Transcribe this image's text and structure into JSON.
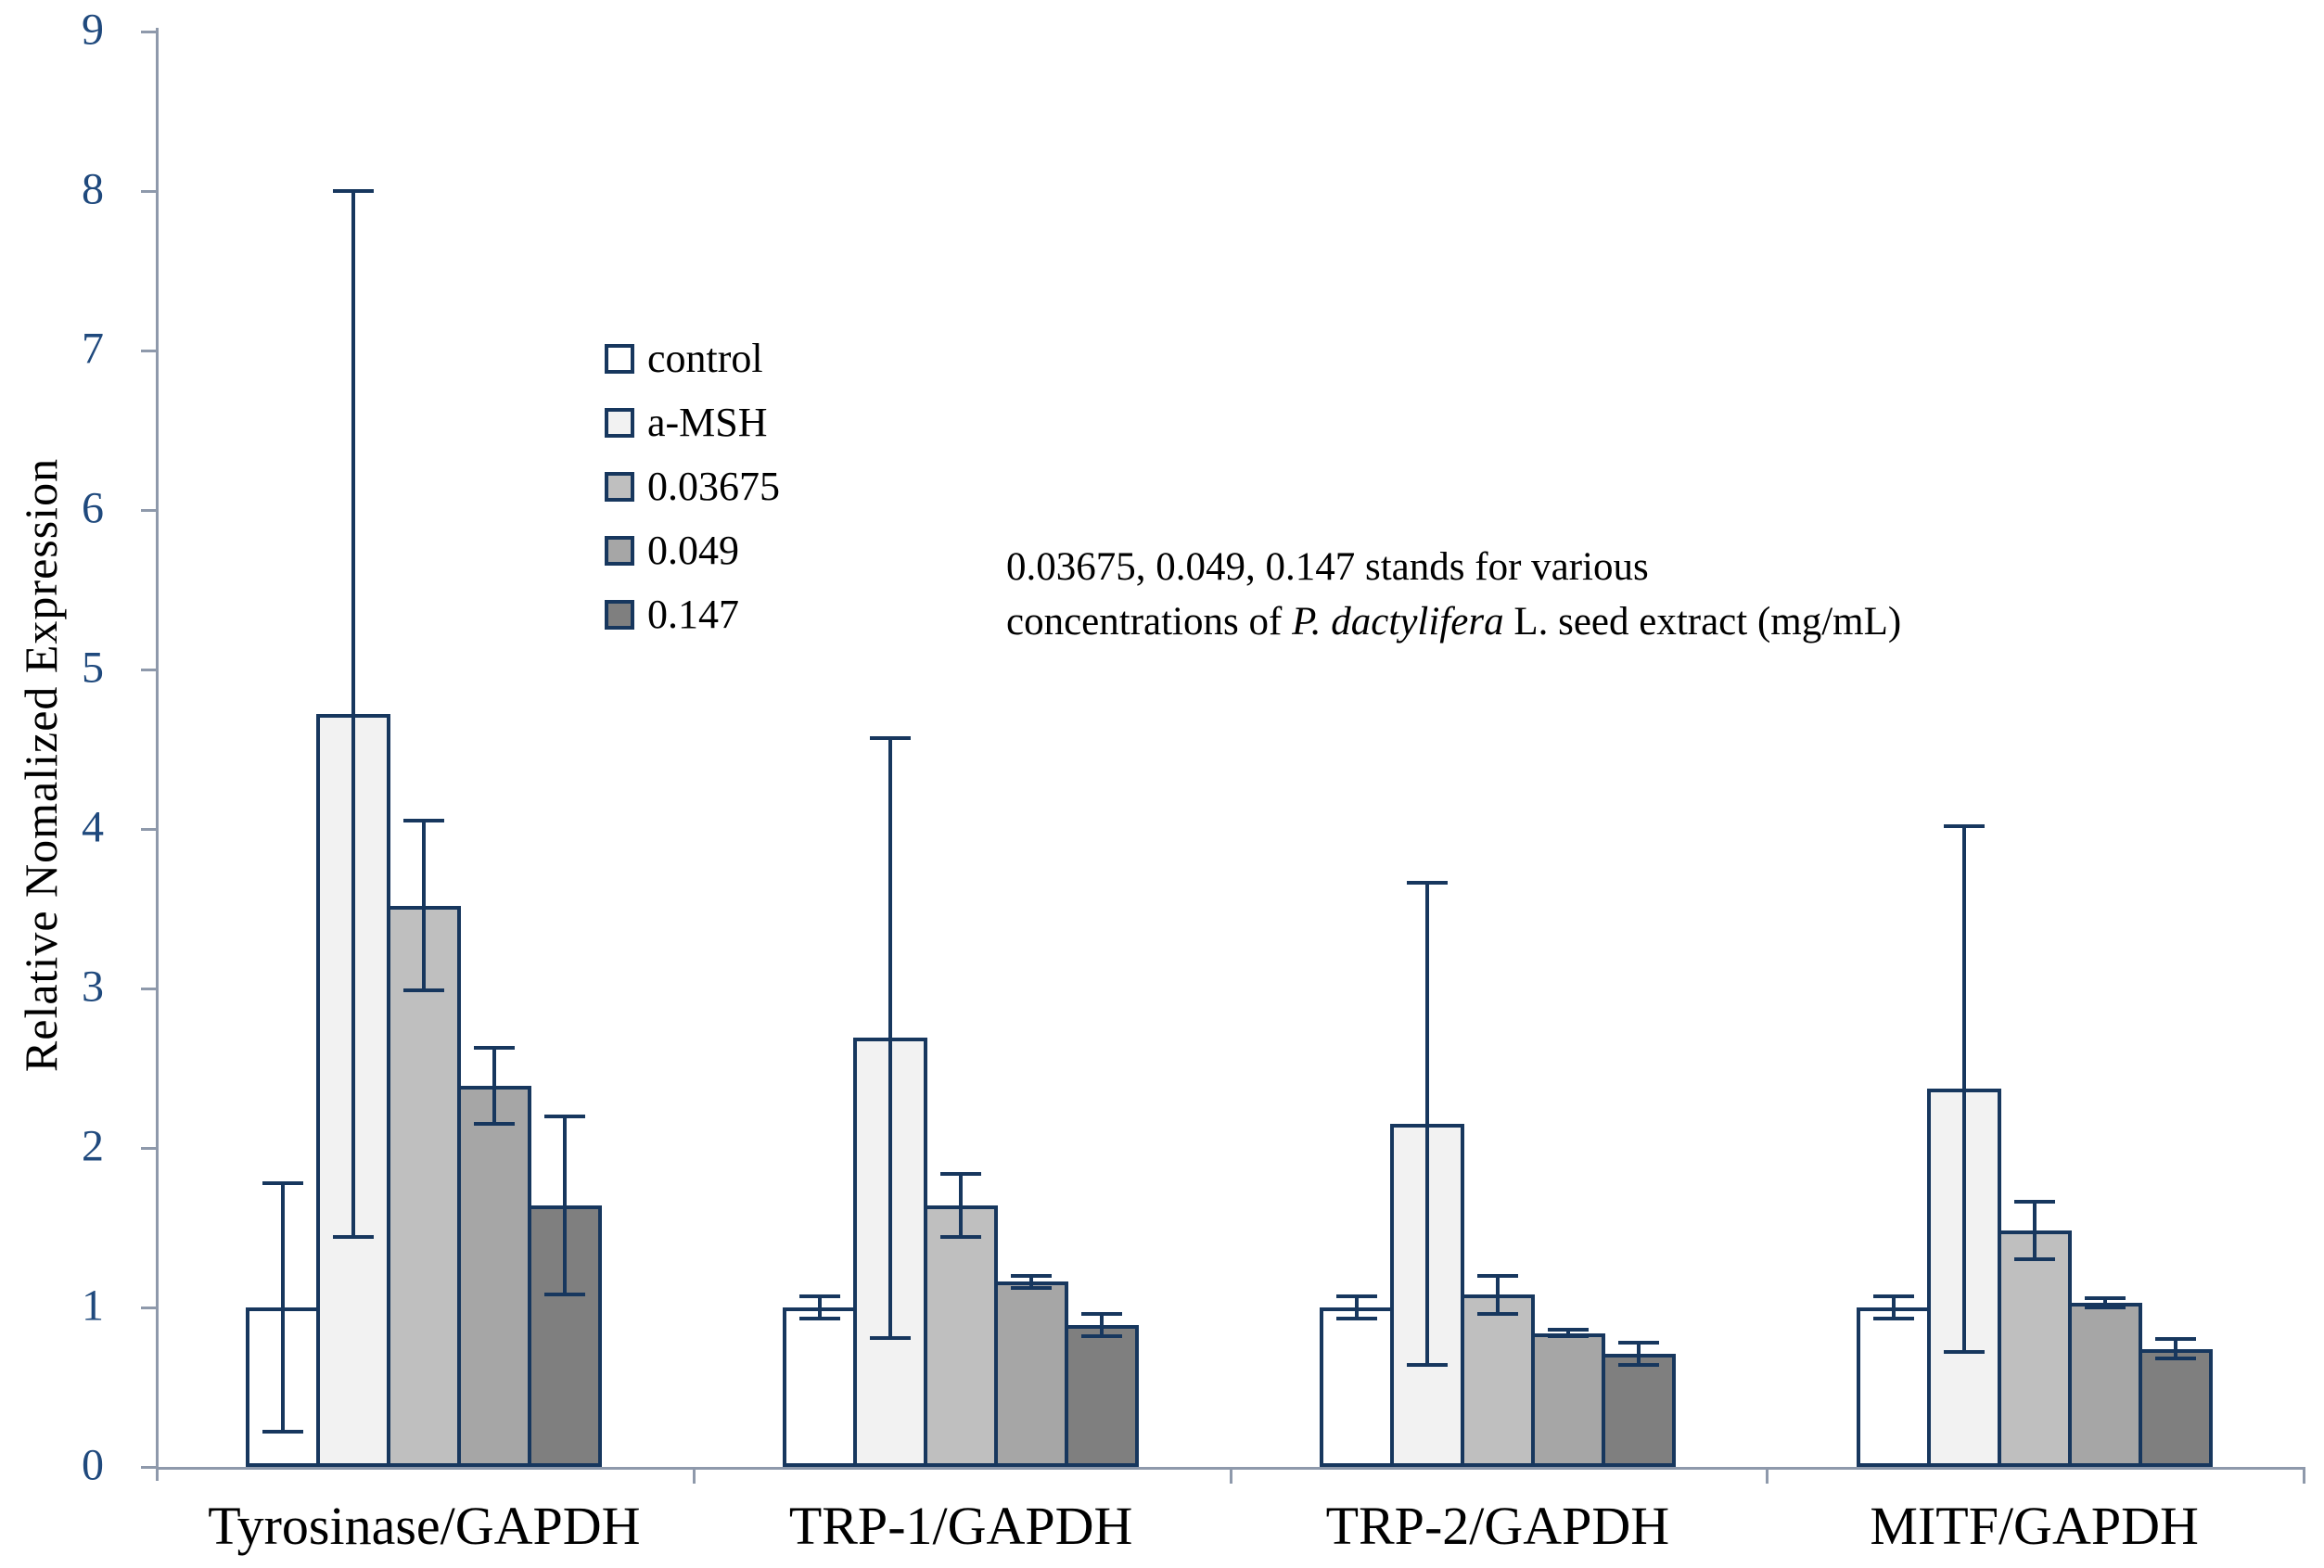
{
  "chart_data": {
    "type": "bar",
    "title": "",
    "ylabel": "Relative Nomalized Expression",
    "xlabel": "",
    "ylim": [
      0,
      9
    ],
    "ytick_step": 1,
    "grid": false,
    "legend_position": "inside-upper-left",
    "categories": [
      "Tyrosinase/GAPDH",
      "TRP-1/GAPDH",
      "TRP-2/GAPDH",
      "MITF/GAPDH"
    ],
    "series": [
      {
        "name": "control",
        "fill": "#FFFFFF",
        "values": [
          1.0,
          1.0,
          1.0,
          1.0
        ],
        "errors": [
          0.78,
          0.07,
          0.07,
          0.07
        ]
      },
      {
        "name": "a-MSH",
        "fill": "#F2F2F2",
        "values": [
          4.72,
          2.69,
          2.15,
          2.37
        ],
        "errors": [
          3.28,
          1.88,
          1.51,
          1.65
        ]
      },
      {
        "name": "0.03675",
        "fill": "#BFBFBF",
        "values": [
          3.52,
          1.64,
          1.08,
          1.48
        ],
        "errors": [
          0.53,
          0.2,
          0.12,
          0.18
        ]
      },
      {
        "name": "0.049",
        "fill": "#A6A6A6",
        "values": [
          2.39,
          1.16,
          0.84,
          1.03
        ],
        "errors": [
          0.24,
          0.04,
          0.02,
          0.03
        ]
      },
      {
        "name": "0.147",
        "fill": "#7F7F7F",
        "values": [
          1.64,
          0.89,
          0.71,
          0.74
        ],
        "errors": [
          0.56,
          0.07,
          0.07,
          0.06
        ]
      }
    ],
    "annotation": {
      "line1": "0.03675, 0.049, 0.147 stands for various",
      "line2_segments": [
        {
          "text": "concentrations of ",
          "italic": false
        },
        {
          "text": "P. dactylifera",
          "italic": true
        },
        {
          "text": " L. seed extract (mg/mL)",
          "italic": false
        }
      ]
    },
    "colors": {
      "bar_border": "#17375E",
      "error_bar": "#17375E",
      "axis_line": "#8E99AB",
      "tick_label": "#1F497D",
      "text": "#000000"
    }
  }
}
